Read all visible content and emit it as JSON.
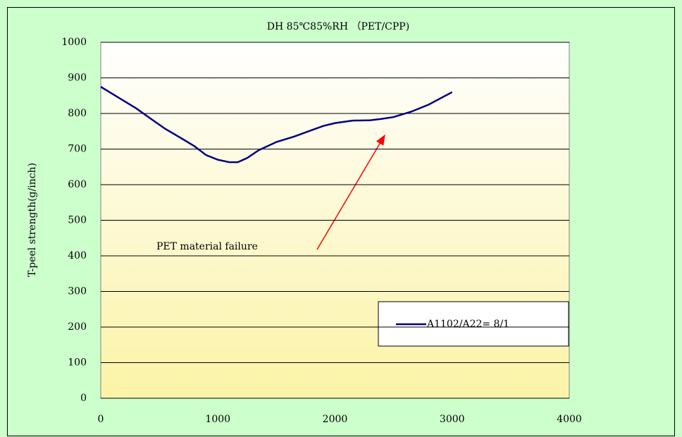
{
  "chart_data": {
    "type": "line",
    "title": "DH 85℃85%RH （PET/CPP)",
    "y_label": "T-peel strength(g/inch)",
    "annotations": [
      "PET material failure"
    ],
    "x": [
      0,
      150,
      300,
      450,
      550,
      700,
      800,
      900,
      1000,
      1100,
      1170,
      1250,
      1350,
      1500,
      1650,
      1800,
      1900,
      2000,
      2150,
      2300,
      2400,
      2500,
      2650,
      2800,
      3000
    ],
    "series": [
      {
        "name": "A1102/A22= 8/1",
        "color": "#000080",
        "values": [
          875,
          845,
          815,
          780,
          757,
          728,
          708,
          683,
          670,
          663,
          663,
          675,
          697,
          720,
          735,
          753,
          765,
          773,
          780,
          781,
          785,
          790,
          805,
          825,
          860
        ]
      }
    ],
    "xlim": [
      0,
      4000
    ],
    "xticks": [
      0,
      1000,
      2000,
      3000,
      4000
    ],
    "ylim": [
      0,
      1000
    ],
    "yticks": [
      0,
      100,
      200,
      300,
      400,
      500,
      600,
      700,
      800,
      900,
      1000
    ],
    "grid": true
  }
}
